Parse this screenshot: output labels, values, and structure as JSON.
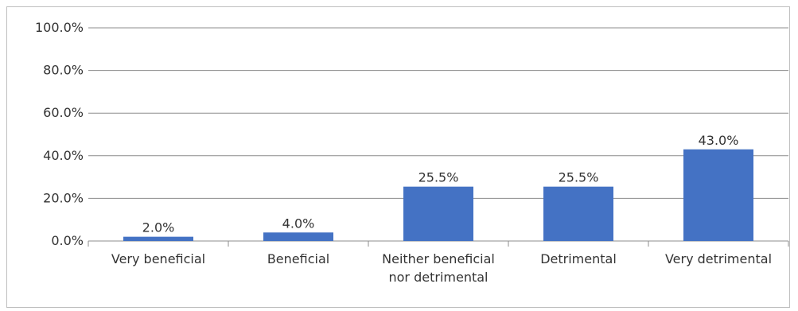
{
  "chart_data": {
    "type": "bar",
    "categories": [
      [
        "Very beneficial"
      ],
      [
        "Beneficial"
      ],
      [
        "Neither beneficial",
        "nor detrimental"
      ],
      [
        "Detrimental"
      ],
      [
        "Very detrimental"
      ]
    ],
    "values": [
      2.0,
      4.0,
      25.5,
      25.5,
      43.0
    ],
    "data_labels": [
      "2.0%",
      "4.0%",
      "25.5%",
      "25.5%",
      "43.0%"
    ],
    "y_ticks": [
      "0.0%",
      "20.0%",
      "40.0%",
      "60.0%",
      "80.0%",
      "100.0%"
    ],
    "ylim": [
      0,
      100
    ],
    "grid": true,
    "legend": "none",
    "bar_color": "#4472C4"
  }
}
